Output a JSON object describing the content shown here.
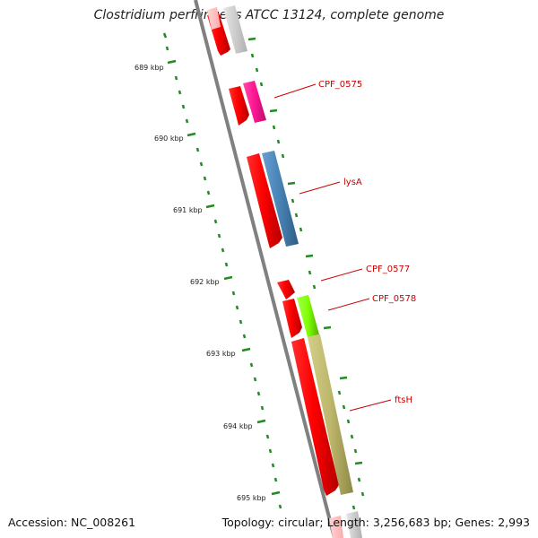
{
  "header": {
    "title": "Clostridium perfringens ATCC 13124, complete genome"
  },
  "footer": {
    "accession": "Accession: NC_008261",
    "summary": "Topology: circular; Length: 3,256,683 bp; Genes: 2,993"
  },
  "scale": {
    "kbp_labels": [
      "689 kbp",
      "690 kbp",
      "691 kbp",
      "692 kbp",
      "693 kbp",
      "694 kbp",
      "695 kbp"
    ]
  },
  "genes": [
    {
      "label": "CPF_0575",
      "color": "#ff1493"
    },
    {
      "label": "lysA",
      "color": "#4682b4"
    },
    {
      "label": "CPF_0577",
      "color": "#ff0000"
    },
    {
      "label": "CPF_0578",
      "color": "#7fff00"
    },
    {
      "label": "ftsH",
      "color": "#bdb76b"
    }
  ],
  "colors": {
    "cds": "#ff0000",
    "backbone": "#808080",
    "ticks": "#228b22",
    "label": "#cc0000"
  }
}
